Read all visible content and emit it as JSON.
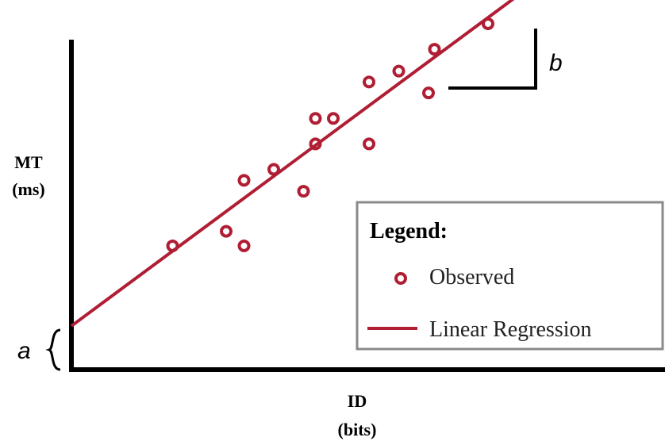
{
  "chart_data": {
    "type": "scatter",
    "title": "",
    "xlabel_line1": "ID",
    "xlabel_line2": "(bits)",
    "ylabel_line1": "MT",
    "ylabel_line2": "(ms)",
    "xlim": [
      0,
      10
    ],
    "ylim": [
      0,
      10
    ],
    "grid": false,
    "legend_position": "bottom-right",
    "intercept_label": "a",
    "slope_label": "b",
    "legend": {
      "title": "Legend:",
      "observed_label": "Observed",
      "regression_label": "Linear Regression"
    },
    "series": [
      {
        "name": "Observed",
        "marker": "ring",
        "color": "#b01e34",
        "points": [
          [
            1.7,
            3.4
          ],
          [
            2.6,
            3.8
          ],
          [
            2.9,
            3.4
          ],
          [
            2.9,
            5.2
          ],
          [
            3.4,
            5.5
          ],
          [
            3.9,
            4.9
          ],
          [
            4.1,
            6.2
          ],
          [
            4.1,
            6.9
          ],
          [
            4.4,
            6.9
          ],
          [
            5.0,
            6.2
          ],
          [
            5.0,
            7.9
          ],
          [
            5.5,
            8.2
          ],
          [
            6.0,
            7.6
          ],
          [
            6.1,
            8.8
          ],
          [
            7.0,
            9.5
          ]
        ]
      },
      {
        "name": "Linear Regression",
        "type": "line",
        "color": "#b01e34",
        "intercept": 1.2,
        "slope": 1.21
      }
    ]
  }
}
